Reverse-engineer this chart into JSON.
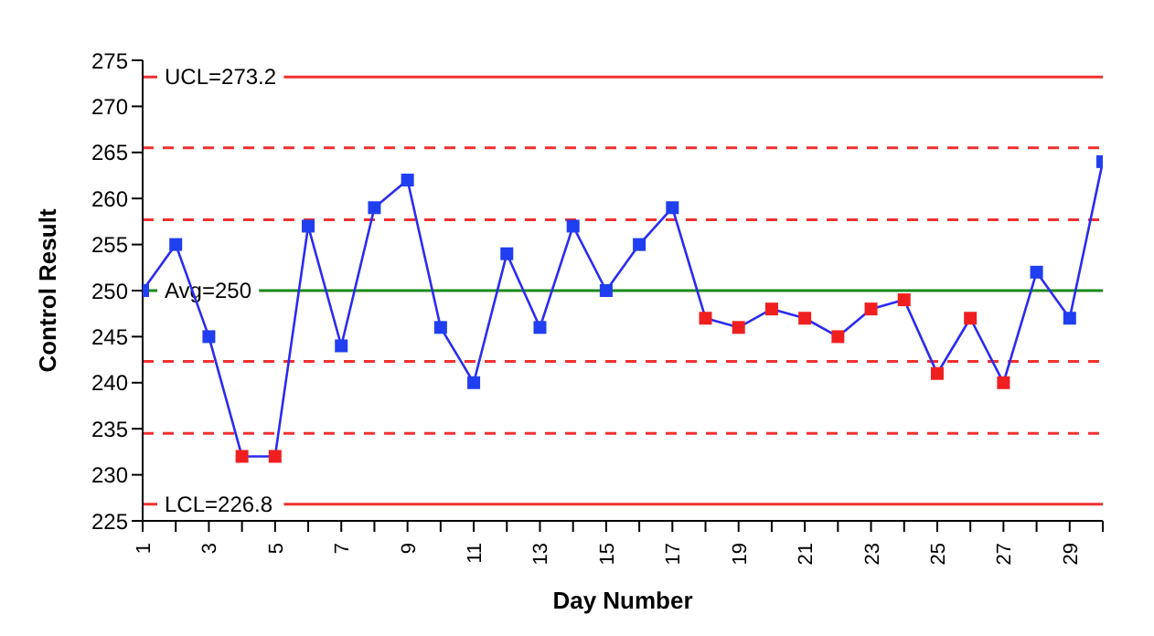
{
  "chart_data": {
    "type": "line",
    "xlabel": "Day Number",
    "ylabel": "Control Result",
    "x": [
      1,
      2,
      3,
      4,
      5,
      6,
      7,
      8,
      9,
      10,
      11,
      12,
      13,
      14,
      15,
      16,
      17,
      18,
      19,
      20,
      21,
      22,
      23,
      24,
      25,
      26,
      27,
      28,
      29,
      30
    ],
    "series": [
      {
        "color": "#2b2bf0",
        "values": [
          250,
          255,
          245,
          232,
          232,
          257,
          244,
          259,
          262,
          246,
          240,
          254,
          246,
          257,
          250,
          255,
          259,
          247,
          246,
          248,
          247,
          245,
          248,
          249,
          241,
          247,
          240,
          252,
          247,
          264
        ],
        "colors": [
          "#1f3ff0",
          "#1f3ff0",
          "#1f3ff0",
          "#f01f1f",
          "#f01f1f",
          "#1f3ff0",
          "#1f3ff0",
          "#1f3ff0",
          "#1f3ff0",
          "#1f3ff0",
          "#1f3ff0",
          "#1f3ff0",
          "#1f3ff0",
          "#1f3ff0",
          "#1f3ff0",
          "#1f3ff0",
          "#1f3ff0",
          "#f01f1f",
          "#f01f1f",
          "#f01f1f",
          "#f01f1f",
          "#f01f1f",
          "#f01f1f",
          "#f01f1f",
          "#f01f1f",
          "#f01f1f",
          "#f01f1f",
          "#1f3ff0",
          "#1f3ff0",
          "#1f3ff0"
        ]
      }
    ],
    "marker": "square",
    "line_style": "solid",
    "grid": false,
    "legend": false,
    "xlim": [
      1,
      30
    ],
    "xticks": [
      1,
      {
        "value": 2,
        "label": null
      },
      3,
      {
        "value": 4,
        "label": null
      },
      5,
      {
        "value": 6,
        "label": null
      },
      7,
      {
        "value": 8,
        "label": null
      },
      9,
      {
        "value": 10,
        "label": null
      },
      11,
      {
        "value": 12,
        "label": null
      },
      13,
      {
        "value": 14,
        "label": null
      },
      15,
      {
        "value": 16,
        "label": null
      },
      17,
      {
        "value": 18,
        "label": null
      },
      19,
      {
        "value": 20,
        "label": null
      },
      21,
      {
        "value": 22,
        "label": null
      },
      23,
      {
        "value": 24,
        "label": null
      },
      25,
      {
        "value": 26,
        "label": null
      },
      27,
      {
        "value": 28,
        "label": null
      },
      29,
      {
        "value": 30,
        "label": null
      }
    ],
    "ylim": [
      225,
      275
    ],
    "yticks": [
      225,
      230,
      235,
      240,
      245,
      250,
      255,
      260,
      265,
      270,
      275
    ],
    "ref_lines": [
      {
        "axis": "y",
        "value": 273.2,
        "label": "UCL=273.2",
        "color": "#f03030",
        "line_style": "solid"
      },
      {
        "axis": "y",
        "value": 265.5,
        "label": null,
        "color": "#f03030",
        "line_style": "dashed"
      },
      {
        "axis": "y",
        "value": 257.7,
        "label": null,
        "color": "#f03030",
        "line_style": "dashed"
      },
      {
        "axis": "y",
        "value": 250,
        "label": "Avg=250",
        "color": "#1a8a1a",
        "line_style": "solid"
      },
      {
        "axis": "y",
        "value": 242.3,
        "label": null,
        "color": "#f03030",
        "line_style": "dashed"
      },
      {
        "axis": "y",
        "value": 234.5,
        "label": null,
        "color": "#f03030",
        "line_style": "dashed"
      },
      {
        "axis": "y",
        "value": 226.8,
        "label": "LCL=226.8",
        "color": "#f03030",
        "line_style": "solid"
      }
    ]
  }
}
